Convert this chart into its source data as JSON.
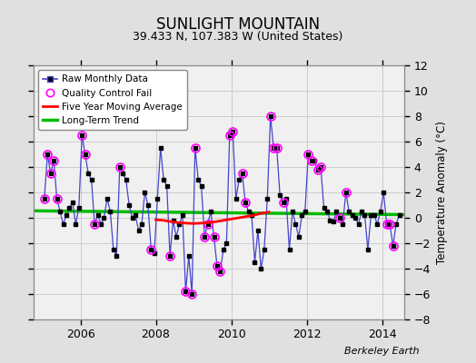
{
  "title": "SUNLIGHT MOUNTAIN",
  "subtitle": "39.433 N, 107.383 W (United States)",
  "ylabel": "Temperature Anomaly (°C)",
  "watermark": "Berkeley Earth",
  "ylim": [
    -8,
    12
  ],
  "yticks": [
    -8,
    -6,
    -4,
    -2,
    0,
    2,
    4,
    6,
    8,
    10,
    12
  ],
  "xlim_start": 2004.75,
  "xlim_end": 2014.6,
  "bg_color": "#e0e0e0",
  "plot_bg_color": "#f0f0f0",
  "raw_color": "#4444cc",
  "raw_marker_color": "#000000",
  "qc_color": "#ff00ff",
  "moving_avg_color": "#ff0000",
  "trend_color": "#00bb00",
  "raw_monthly_data": [
    2005.042,
    1.5,
    2005.125,
    5.0,
    2005.208,
    3.5,
    2005.292,
    4.5,
    2005.375,
    1.5,
    2005.458,
    0.5,
    2005.542,
    -0.5,
    2005.625,
    0.2,
    2005.708,
    0.8,
    2005.792,
    1.2,
    2005.875,
    -0.5,
    2005.958,
    0.8,
    2006.042,
    6.5,
    2006.125,
    5.0,
    2006.208,
    3.5,
    2006.292,
    3.0,
    2006.375,
    -0.5,
    2006.458,
    0.2,
    2006.542,
    -0.5,
    2006.625,
    0.0,
    2006.708,
    1.5,
    2006.792,
    0.5,
    2006.875,
    -2.5,
    2006.958,
    -3.0,
    2007.042,
    4.0,
    2007.125,
    3.5,
    2007.208,
    3.0,
    2007.292,
    1.0,
    2007.375,
    0.0,
    2007.458,
    0.2,
    2007.542,
    -1.0,
    2007.625,
    -0.5,
    2007.708,
    2.0,
    2007.792,
    1.0,
    2007.875,
    -2.5,
    2007.958,
    -2.8,
    2008.042,
    1.5,
    2008.125,
    5.5,
    2008.208,
    3.0,
    2008.292,
    2.5,
    2008.375,
    -3.0,
    2008.458,
    -0.2,
    2008.542,
    -1.5,
    2008.625,
    -0.5,
    2008.708,
    0.2,
    2008.792,
    -5.8,
    2008.875,
    -3.0,
    2008.958,
    -6.0,
    2009.042,
    5.5,
    2009.125,
    3.0,
    2009.208,
    2.5,
    2009.292,
    -1.5,
    2009.375,
    -0.5,
    2009.458,
    0.5,
    2009.542,
    -1.5,
    2009.625,
    -3.8,
    2009.708,
    -4.2,
    2009.792,
    -2.5,
    2009.875,
    -2.0,
    2009.958,
    6.5,
    2010.042,
    6.8,
    2010.125,
    1.5,
    2010.208,
    3.0,
    2010.292,
    3.5,
    2010.375,
    1.2,
    2010.458,
    0.5,
    2010.542,
    0.2,
    2010.625,
    -3.5,
    2010.708,
    -1.0,
    2010.792,
    -4.0,
    2010.875,
    -2.5,
    2010.958,
    1.5,
    2011.042,
    8.0,
    2011.125,
    5.5,
    2011.208,
    5.5,
    2011.292,
    1.8,
    2011.375,
    1.2,
    2011.458,
    1.5,
    2011.542,
    -2.5,
    2011.625,
    0.5,
    2011.708,
    -0.5,
    2011.792,
    -1.5,
    2011.875,
    0.2,
    2011.958,
    0.5,
    2012.042,
    5.0,
    2012.125,
    4.5,
    2012.208,
    4.5,
    2012.292,
    3.8,
    2012.375,
    4.0,
    2012.458,
    0.8,
    2012.542,
    0.5,
    2012.625,
    -0.2,
    2012.708,
    -0.3,
    2012.792,
    0.5,
    2012.875,
    0.0,
    2012.958,
    -0.5,
    2013.042,
    2.0,
    2013.125,
    0.5,
    2013.208,
    0.2,
    2013.292,
    0.0,
    2013.375,
    -0.5,
    2013.458,
    0.5,
    2013.542,
    0.2,
    2013.625,
    -2.5,
    2013.708,
    0.2,
    2013.792,
    0.2,
    2013.875,
    -0.5,
    2013.958,
    0.5,
    2014.042,
    2.0,
    2014.125,
    -0.5,
    2014.208,
    -0.5,
    2014.292,
    -2.2,
    2014.375,
    -0.5,
    2014.458,
    0.2
  ],
  "qc_fail_points": [
    2005.042,
    1.5,
    2005.125,
    5.0,
    2005.208,
    3.5,
    2005.292,
    4.5,
    2005.375,
    1.5,
    2006.042,
    6.5,
    2006.125,
    5.0,
    2006.375,
    -0.5,
    2007.042,
    4.0,
    2007.875,
    -2.5,
    2008.375,
    -3.0,
    2008.792,
    -5.8,
    2008.958,
    -6.0,
    2009.042,
    5.5,
    2009.292,
    -1.5,
    2009.375,
    -0.5,
    2009.542,
    -1.5,
    2009.625,
    -3.8,
    2009.708,
    -4.2,
    2009.958,
    6.5,
    2010.042,
    6.8,
    2010.292,
    3.5,
    2010.375,
    1.2,
    2011.042,
    8.0,
    2011.125,
    5.5,
    2011.208,
    5.5,
    2011.375,
    1.2,
    2012.042,
    5.0,
    2012.125,
    4.5,
    2012.292,
    3.8,
    2012.375,
    4.0,
    2012.875,
    0.0,
    2013.042,
    2.0,
    2014.125,
    -0.5,
    2014.208,
    -0.5,
    2014.292,
    -2.2
  ],
  "moving_avg_x": [
    2008.0,
    2008.2,
    2008.4,
    2008.6,
    2008.8,
    2009.0,
    2009.2,
    2009.4,
    2009.6,
    2009.8,
    2010.0,
    2010.2,
    2010.4,
    2010.6,
    2010.8,
    2011.0
  ],
  "moving_avg_y": [
    -0.15,
    -0.2,
    -0.3,
    -0.38,
    -0.42,
    -0.45,
    -0.42,
    -0.38,
    -0.3,
    -0.2,
    -0.1,
    0.0,
    0.1,
    0.2,
    0.35,
    0.45
  ],
  "trend_x": [
    2004.75,
    2014.6
  ],
  "trend_y": [
    0.55,
    0.25
  ]
}
